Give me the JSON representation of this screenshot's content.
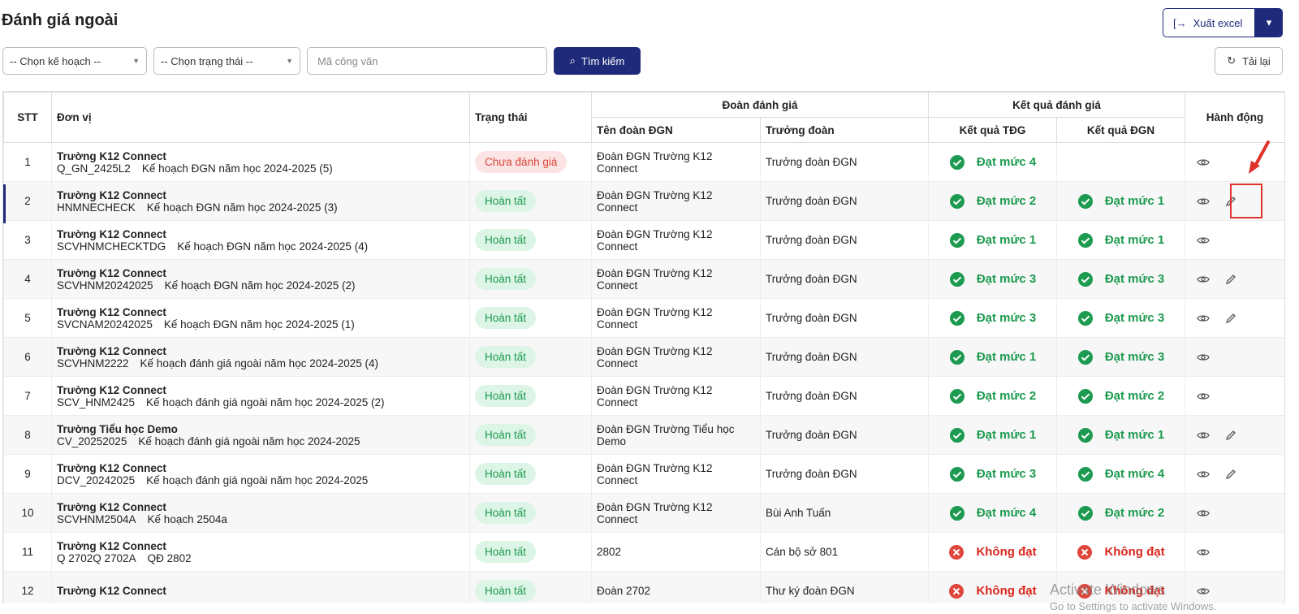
{
  "header": {
    "title": "Đánh giá ngoài",
    "export": "Xuất excel",
    "reload": "Tải lại"
  },
  "filters": {
    "plan": "-- Chọn kế hoạch --",
    "status": "-- Chọn trạng thái --",
    "code": "Mã công văn",
    "search": "Tìm kiếm"
  },
  "table": {
    "headers": {
      "stt": "STT",
      "unit": "Đơn vị",
      "status": "Trạng thái",
      "team_group": "Đoàn đánh giá",
      "team": "Tên đoàn ĐGN",
      "leader": "Trưởng đoàn",
      "result_group": "Kết quả đánh giá",
      "tdg": "Kết quả TĐG",
      "dgn": "Kết quả ĐGN",
      "actions": "Hành động"
    },
    "rows": [
      {
        "stt": 1,
        "unit": "Trường K12 Connect",
        "code": "Q_GN_2425L2",
        "plan": "Kế hoạch ĐGN năm học 2024-2025 (5)",
        "status": "Chưa đánh giá",
        "team": "Đoàn ĐGN Trường K12 Connect",
        "leader": "Trưởng đoàn ĐGN",
        "tdg": {
          "label": "Đạt mức 4",
          "passed": true
        },
        "dgn": null,
        "editable": false
      },
      {
        "stt": 2,
        "unit": "Trường K12 Connect",
        "code": "HNMNECHECK",
        "plan": "Kế hoạch ĐGN năm học 2024-2025 (3)",
        "status": "Hoàn tất",
        "team": "Đoàn ĐGN Trường K12 Connect",
        "leader": "Trưởng đoàn ĐGN",
        "tdg": {
          "label": "Đạt mức 2",
          "passed": true
        },
        "dgn": {
          "label": "Đạt mức 1",
          "passed": true
        },
        "editable": true
      },
      {
        "stt": 3,
        "unit": "Trường K12 Connect",
        "code": "SCVHNMCHECKTDG",
        "plan": "Kế hoạch ĐGN năm học 2024-2025 (4)",
        "status": "Hoàn tất",
        "team": "Đoàn ĐGN Trường K12 Connect",
        "leader": "Trưởng đoàn ĐGN",
        "tdg": {
          "label": "Đạt mức 1",
          "passed": true
        },
        "dgn": {
          "label": "Đạt mức 1",
          "passed": true
        },
        "editable": false
      },
      {
        "stt": 4,
        "unit": "Trường K12 Connect",
        "code": "SCVHNM20242025",
        "plan": "Kế hoạch ĐGN năm học 2024-2025 (2)",
        "status": "Hoàn tất",
        "team": "Đoàn ĐGN Trường K12 Connect",
        "leader": "Trưởng đoàn ĐGN",
        "tdg": {
          "label": "Đạt mức 3",
          "passed": true
        },
        "dgn": {
          "label": "Đạt mức 3",
          "passed": true
        },
        "editable": true
      },
      {
        "stt": 5,
        "unit": "Trường K12 Connect",
        "code": "SVCNAM20242025",
        "plan": "Kế hoạch ĐGN năm học 2024-2025 (1)",
        "status": "Hoàn tất",
        "team": "Đoàn ĐGN Trường K12 Connect",
        "leader": "Trưởng đoàn ĐGN",
        "tdg": {
          "label": "Đạt mức 3",
          "passed": true
        },
        "dgn": {
          "label": "Đạt mức 3",
          "passed": true
        },
        "editable": true
      },
      {
        "stt": 6,
        "unit": "Trường K12 Connect",
        "code": "SCVHNM2222",
        "plan": "Kế hoạch đánh giá ngoài năm học 2024-2025 (4)",
        "status": "Hoàn tất",
        "team": "Đoàn ĐGN Trường K12 Connect",
        "leader": "Trưởng đoàn ĐGN",
        "tdg": {
          "label": "Đạt mức 1",
          "passed": true
        },
        "dgn": {
          "label": "Đạt mức 3",
          "passed": true
        },
        "editable": false
      },
      {
        "stt": 7,
        "unit": "Trường K12 Connect",
        "code": "SCV_HNM2425",
        "plan": "Kế hoạch đánh giá ngoài năm học 2024-2025 (2)",
        "status": "Hoàn tất",
        "team": "Đoàn ĐGN Trường K12 Connect",
        "leader": "Trưởng đoàn ĐGN",
        "tdg": {
          "label": "Đạt mức 2",
          "passed": true
        },
        "dgn": {
          "label": "Đạt mức 2",
          "passed": true
        },
        "editable": false
      },
      {
        "stt": 8,
        "unit": "Trường Tiểu học Demo",
        "code": "CV_20252025",
        "plan": "Kế hoạch đánh giá ngoài năm học 2024-2025",
        "status": "Hoàn tất",
        "team": "Đoàn ĐGN Trường Tiểu học Demo",
        "leader": "Trưởng đoàn ĐGN",
        "tdg": {
          "label": "Đạt mức 1",
          "passed": true
        },
        "dgn": {
          "label": "Đạt mức 1",
          "passed": true
        },
        "editable": true
      },
      {
        "stt": 9,
        "unit": "Trường K12 Connect",
        "code": "DCV_20242025",
        "plan": "Kế hoạch đánh giá ngoài năm học 2024-2025",
        "status": "Hoàn tất",
        "team": "Đoàn ĐGN Trường K12 Connect",
        "leader": "Trưởng đoàn ĐGN",
        "tdg": {
          "label": "Đạt mức 3",
          "passed": true
        },
        "dgn": {
          "label": "Đạt mức 4",
          "passed": true
        },
        "editable": true
      },
      {
        "stt": 10,
        "unit": "Trường K12 Connect",
        "code": "SCVHNM2504A",
        "plan": "Kế hoạch 2504a",
        "status": "Hoàn tất",
        "team": "Đoàn ĐGN Trường K12 Connect",
        "leader": "Bùi Anh Tuấn",
        "tdg": {
          "label": "Đạt mức 4",
          "passed": true
        },
        "dgn": {
          "label": "Đạt mức 2",
          "passed": true
        },
        "editable": false
      },
      {
        "stt": 11,
        "unit": "Trường K12 Connect",
        "code": "Q 2702Q 2702A",
        "plan": "QĐ 2802",
        "status": "Hoàn tất",
        "team": "2802",
        "leader": "Cán bộ sở 801",
        "tdg": {
          "label": "Không đạt",
          "passed": false
        },
        "dgn": {
          "label": "Không đạt",
          "passed": false
        },
        "editable": false
      },
      {
        "stt": 12,
        "unit": "Trường K12 Connect",
        "status": "Hoàn tất",
        "team": "Đoàn 2702",
        "leader": "Thư ký đoàn ĐGN",
        "tdg": {
          "label": "Không đạt",
          "passed": false
        },
        "dgn": {
          "label": "Không đạt",
          "passed": false
        },
        "editable": false
      }
    ]
  },
  "watermark": {
    "line1": "Activate Windows",
    "line2": "Go to Settings to activate Windows."
  }
}
